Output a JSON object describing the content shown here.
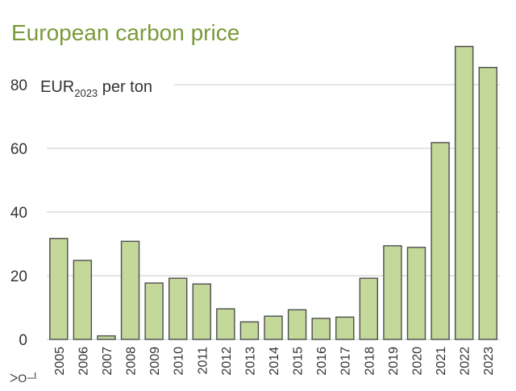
{
  "chart_data": {
    "type": "bar",
    "title": "European carbon price",
    "ylabel_prefix": "EUR",
    "ylabel_sub": "2023",
    "ylabel_suffix": " per ton",
    "xlabel": "",
    "ylim": [
      0,
      90
    ],
    "yticks": [
      0,
      20,
      40,
      60,
      80
    ],
    "categories": [
      "2005",
      "2006",
      "2007",
      "2008",
      "2009",
      "2010",
      "2011",
      "2012",
      "2013",
      "2014",
      "2015",
      "2016",
      "2017",
      "2018",
      "2019",
      "2020",
      "2021",
      "2022",
      "2023"
    ],
    "values": [
      31.7,
      24.8,
      1.1,
      30.8,
      17.7,
      19.2,
      17.4,
      9.6,
      5.5,
      7.3,
      9.3,
      6.6,
      7.0,
      19.2,
      29.4,
      28.9,
      61.8,
      92.0,
      85.4
    ],
    "colors": {
      "bar_fill": "#c4d89a",
      "bar_stroke": "#4d4d4d",
      "title": "#7a9a3a",
      "grid": "#d4d4d4"
    },
    "logo_text": "ᐳOᆜ"
  }
}
